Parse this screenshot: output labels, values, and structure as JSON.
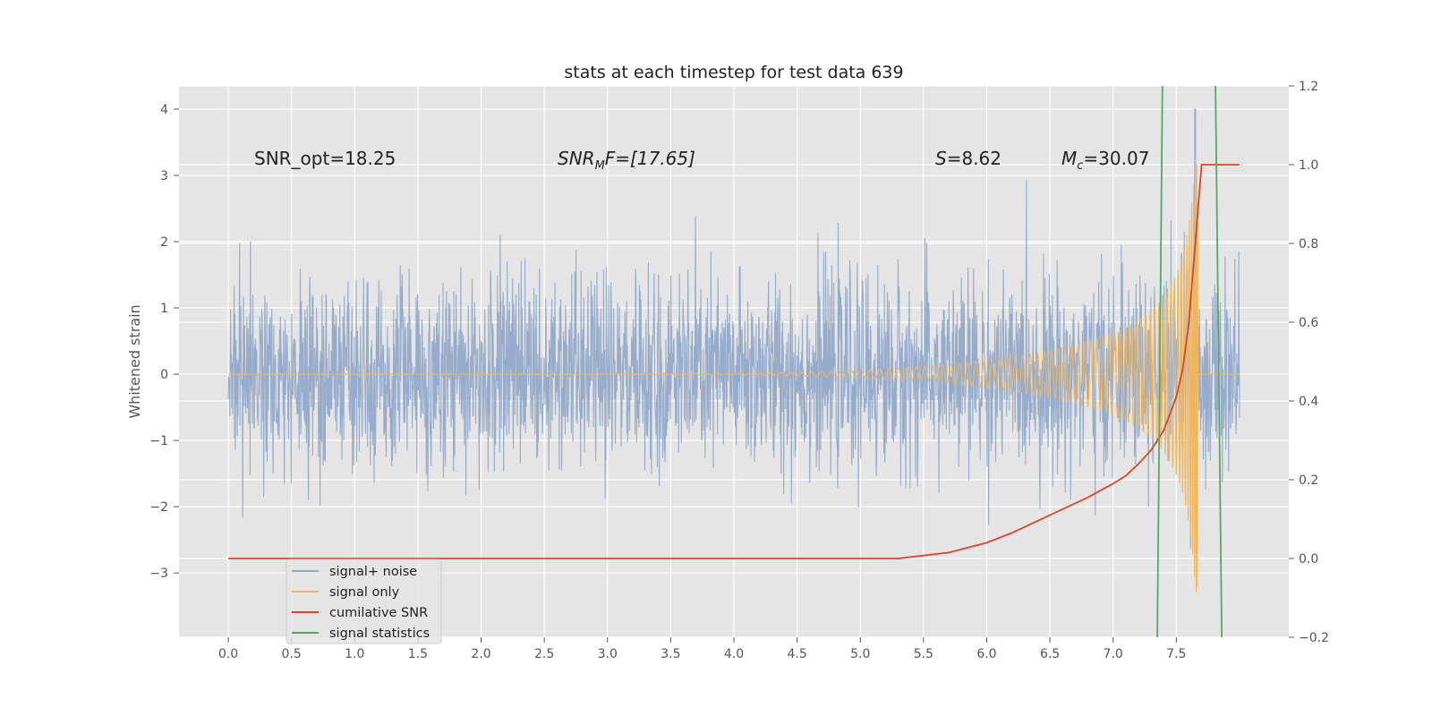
{
  "chart_data": {
    "type": "line",
    "title": "stats at each timestep for test data 639",
    "xlabel": "",
    "ylabel": "Whitened strain",
    "y2label": "",
    "xlim": [
      -0.39,
      8.39
    ],
    "ylim": [
      -3.97,
      4.35
    ],
    "y2lim": [
      -0.2,
      1.2
    ],
    "grid": true,
    "legend_position": "lower-left",
    "x_ticks": [
      "0.0",
      "0.5",
      "1.0",
      "1.5",
      "2.0",
      "2.5",
      "3.0",
      "3.5",
      "4.0",
      "4.5",
      "5.0",
      "5.5",
      "6.0",
      "6.5",
      "7.0",
      "7.5"
    ],
    "y_ticks": [
      "4",
      "3",
      "2",
      "1",
      "0",
      "−1",
      "−2",
      "−3"
    ],
    "y2_ticks": [
      "1.2",
      "1.0",
      "0.8",
      "0.6",
      "0.4",
      "0.2",
      "0.0",
      "−0.2"
    ],
    "annotations": {
      "snr_opt": "SNR_opt=18.25",
      "snr_mf_main": "SNR",
      "snr_mf_sub": "M",
      "snr_mf_rest": "F=[17.65]",
      "s_main": "S",
      "s_rest": "=8.62",
      "mc_main": "M",
      "mc_sub": "c",
      "mc_rest": "=30.07"
    },
    "series": [
      {
        "name": "signal+ noise",
        "color": "#92a8c9",
        "axis": "left",
        "x_range": [
          0.0,
          8.0
        ],
        "envelope": "gaussian noise, std ≈ 0.75, peaks ≈ ±2.5 (max 4.0 near x=7.65)"
      },
      {
        "name": "signal only",
        "color": "#f2b65a",
        "axis": "left",
        "x_range": [
          0.0,
          8.0
        ],
        "envelope": "chirp: amplitude ≈ 0 until x≈5.5, grows to ≈ ±3.3 at x≈7.67, then 0"
      },
      {
        "name": "cumilative SNR",
        "color": "#d9452b",
        "axis": "right",
        "x": [
          0.0,
          5.0,
          5.3,
          5.7,
          6.0,
          6.2,
          6.5,
          6.8,
          7.0,
          7.1,
          7.2,
          7.3,
          7.4,
          7.5,
          7.55,
          7.6,
          7.65,
          7.7,
          8.0
        ],
        "y": [
          0.0,
          0.0,
          0.0,
          0.015,
          0.04,
          0.065,
          0.11,
          0.155,
          0.19,
          0.21,
          0.24,
          0.275,
          0.325,
          0.41,
          0.48,
          0.6,
          0.8,
          1.0,
          1.0
        ]
      },
      {
        "name": "signal statistics",
        "color": "#55a868",
        "axis": "right",
        "lines": [
          {
            "x": [
              7.35,
              7.39
            ],
            "y": [
              -0.2,
              1.2
            ]
          },
          {
            "x": [
              7.86,
              7.81
            ],
            "y": [
              -0.2,
              1.2
            ]
          }
        ]
      }
    ]
  }
}
